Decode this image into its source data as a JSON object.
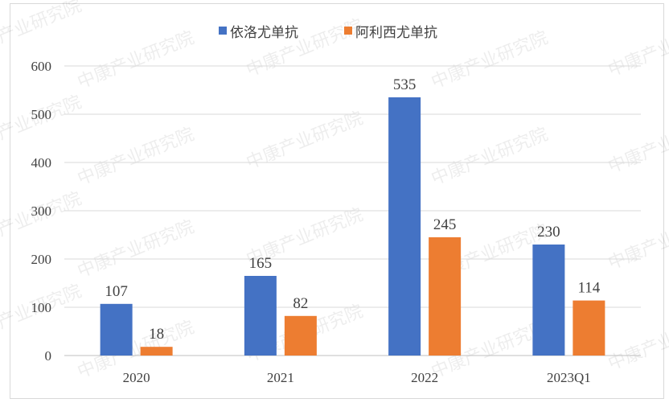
{
  "watermark": "中康产业研究院",
  "chart_data": {
    "type": "bar",
    "title": "",
    "xlabel": "",
    "ylabel": "",
    "categories": [
      "2020",
      "2021",
      "2022",
      "2023Q1"
    ],
    "series": [
      {
        "name": "依洛尤单抗",
        "color": "#4472C4",
        "values": [
          107,
          165,
          535,
          230
        ]
      },
      {
        "name": "阿利西尤单抗",
        "color": "#ED7D31",
        "values": [
          18,
          82,
          245,
          114
        ]
      }
    ],
    "ylim": [
      0,
      600
    ],
    "yticks": [
      0,
      100,
      200,
      300,
      400,
      500,
      600
    ],
    "grid": true,
    "legend": "top-center"
  }
}
